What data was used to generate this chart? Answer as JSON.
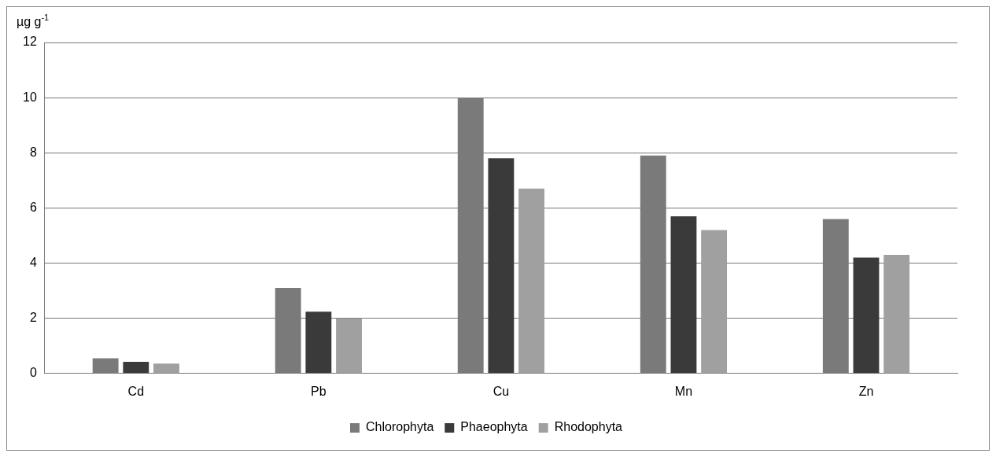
{
  "chart_data": {
    "type": "bar",
    "ylabel": "µg g$^{-1}$",
    "categories": [
      "Cd",
      "Pb",
      "Cu",
      "Mn",
      "Zn"
    ],
    "series": [
      {
        "name": "Chlorophyta",
        "color": "#7a7a7a",
        "values": [
          0.55,
          3.1,
          10.0,
          7.9,
          5.6
        ]
      },
      {
        "name": "Phaeophyta",
        "color": "#3a3a3a",
        "values": [
          0.42,
          2.24,
          7.8,
          5.7,
          4.2
        ]
      },
      {
        "name": "Rhodophyta",
        "color": "#a0a0a0",
        "values": [
          0.36,
          2.0,
          6.7,
          5.2,
          4.3
        ]
      }
    ],
    "ylim": [
      0,
      12
    ],
    "yticks": [
      0,
      2,
      4,
      6,
      8,
      10,
      12
    ],
    "grid": "y",
    "legend": "bottom"
  }
}
